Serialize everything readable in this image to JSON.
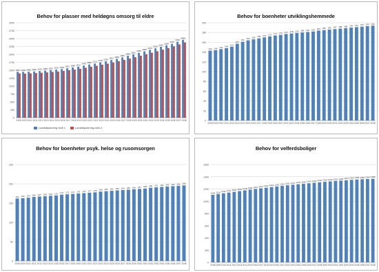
{
  "colors": {
    "blue": "#4f81bd",
    "red": "#c0504d",
    "grid": "#d0d0d0",
    "axisText": "#555555"
  },
  "chart_data": [
    {
      "type": "bar",
      "title": "Behov for plasser med heldøgns omsorg til eldre",
      "categories": [
        "2008",
        "2009",
        "2010",
        "2011",
        "2012",
        "2013",
        "2014",
        "2015",
        "2016",
        "2017",
        "2018",
        "2019",
        "2020",
        "2021",
        "2022",
        "2023",
        "2024",
        "2025",
        "2026",
        "2027",
        "2028",
        "2029",
        "2030",
        "2031",
        "2032",
        "2033",
        "2034",
        "2035",
        "2036",
        "2037",
        "2038"
      ],
      "series": [
        {
          "name": "Landstipulering nivå 1",
          "values": [
            1451,
            1448,
            1455,
            1462,
            1475,
            1488,
            1502,
            1520,
            1538,
            1562,
            1588,
            1612,
            1648,
            1680,
            1712,
            1748,
            1785,
            1822,
            1860,
            1905,
            1955,
            2002,
            2050,
            2098,
            2145,
            2192,
            2240,
            2288,
            2335,
            2400,
            2460
          ]
        },
        {
          "name": "Landstipulering nivå 2",
          "values": [
            1400,
            1395,
            1402,
            1410,
            1420,
            1432,
            1445,
            1460,
            1478,
            1498,
            1520,
            1548,
            1578,
            1610,
            1642,
            1675,
            1708,
            1745,
            1785,
            1825,
            1868,
            1912,
            1958,
            2005,
            2052,
            2100,
            2150,
            2200,
            2255,
            2315,
            2380
          ]
        }
      ],
      "ylim": [
        0,
        3000
      ],
      "yticks": [
        "0",
        "250",
        "500",
        "750",
        "1000",
        "1250",
        "1500",
        "1750",
        "2000",
        "2250",
        "2500",
        "2750",
        "3000"
      ],
      "legend_position": "bottom"
    },
    {
      "type": "bar",
      "title": "Behov for boenheter utviklingshemmede",
      "categories": [
        "2008",
        "2009",
        "2010",
        "2011",
        "2012",
        "2013",
        "2014",
        "2015",
        "2016",
        "2017",
        "2018",
        "2019",
        "2020",
        "2021",
        "2022",
        "2023",
        "2024",
        "2025",
        "2026",
        "2027",
        "2028",
        "2029",
        "2030",
        "2031",
        "2032",
        "2033",
        "2034",
        "2035",
        "2036",
        "2037",
        "2038"
      ],
      "series": [
        {
          "values": [
            143,
            144,
            146,
            148,
            151,
            157,
            161,
            164,
            166,
            168,
            170,
            172,
            174,
            175,
            177,
            178,
            179,
            180,
            181,
            182,
            184,
            185,
            186,
            187,
            188,
            189,
            190,
            191,
            192,
            193,
            194
          ]
        }
      ],
      "ylim": [
        0,
        200
      ],
      "yticks": [
        "0",
        "20",
        "40",
        "60",
        "80",
        "100",
        "120",
        "140",
        "160",
        "180",
        "200"
      ]
    },
    {
      "type": "bar",
      "title": "Behov for boenheter psyk. helse og rusomsorgen",
      "categories": [
        "2008",
        "2009",
        "2010",
        "2011",
        "2012",
        "2013",
        "2014",
        "2015",
        "2016",
        "2017",
        "2018",
        "2019",
        "2020",
        "2021",
        "2022",
        "2023",
        "2024",
        "2025",
        "2026",
        "2027",
        "2028",
        "2029",
        "2030",
        "2031",
        "2032",
        "2033",
        "2034",
        "2035",
        "2036",
        "2037",
        "2038"
      ],
      "series": [
        {
          "values": [
            162,
            163,
            164,
            166,
            167,
            168,
            169,
            170,
            172,
            173,
            174,
            175,
            176,
            177,
            178,
            180,
            181,
            182,
            183,
            184,
            185,
            186,
            187,
            188,
            190,
            191,
            192,
            193,
            194,
            195,
            196
          ]
        }
      ],
      "ylim": [
        0,
        250
      ],
      "yticks": [
        "0",
        "50",
        "100",
        "150",
        "200",
        "250"
      ]
    },
    {
      "type": "bar",
      "title": "Behov for velferdsboliger",
      "categories": [
        "2008",
        "2009",
        "2010",
        "2011",
        "2012",
        "2013",
        "2014",
        "2015",
        "2016",
        "2017",
        "2018",
        "2019",
        "2020",
        "2021",
        "2022",
        "2023",
        "2024",
        "2025",
        "2026",
        "2027",
        "2028",
        "2029",
        "2030",
        "2031",
        "2032",
        "2033",
        "2034",
        "2035",
        "2036",
        "2037",
        "2038"
      ],
      "series": [
        {
          "values": [
            1105,
            1118,
            1130,
            1142,
            1154,
            1166,
            1178,
            1190,
            1201,
            1212,
            1222,
            1232,
            1242,
            1252,
            1261,
            1270,
            1278,
            1286,
            1294,
            1302,
            1310,
            1318,
            1325,
            1332,
            1338,
            1344,
            1350,
            1355,
            1360,
            1364,
            1368
          ]
        }
      ],
      "ylim": [
        0,
        1600
      ],
      "yticks": [
        "0",
        "200",
        "400",
        "600",
        "800",
        "1000",
        "1200",
        "1400",
        "1600"
      ]
    }
  ]
}
